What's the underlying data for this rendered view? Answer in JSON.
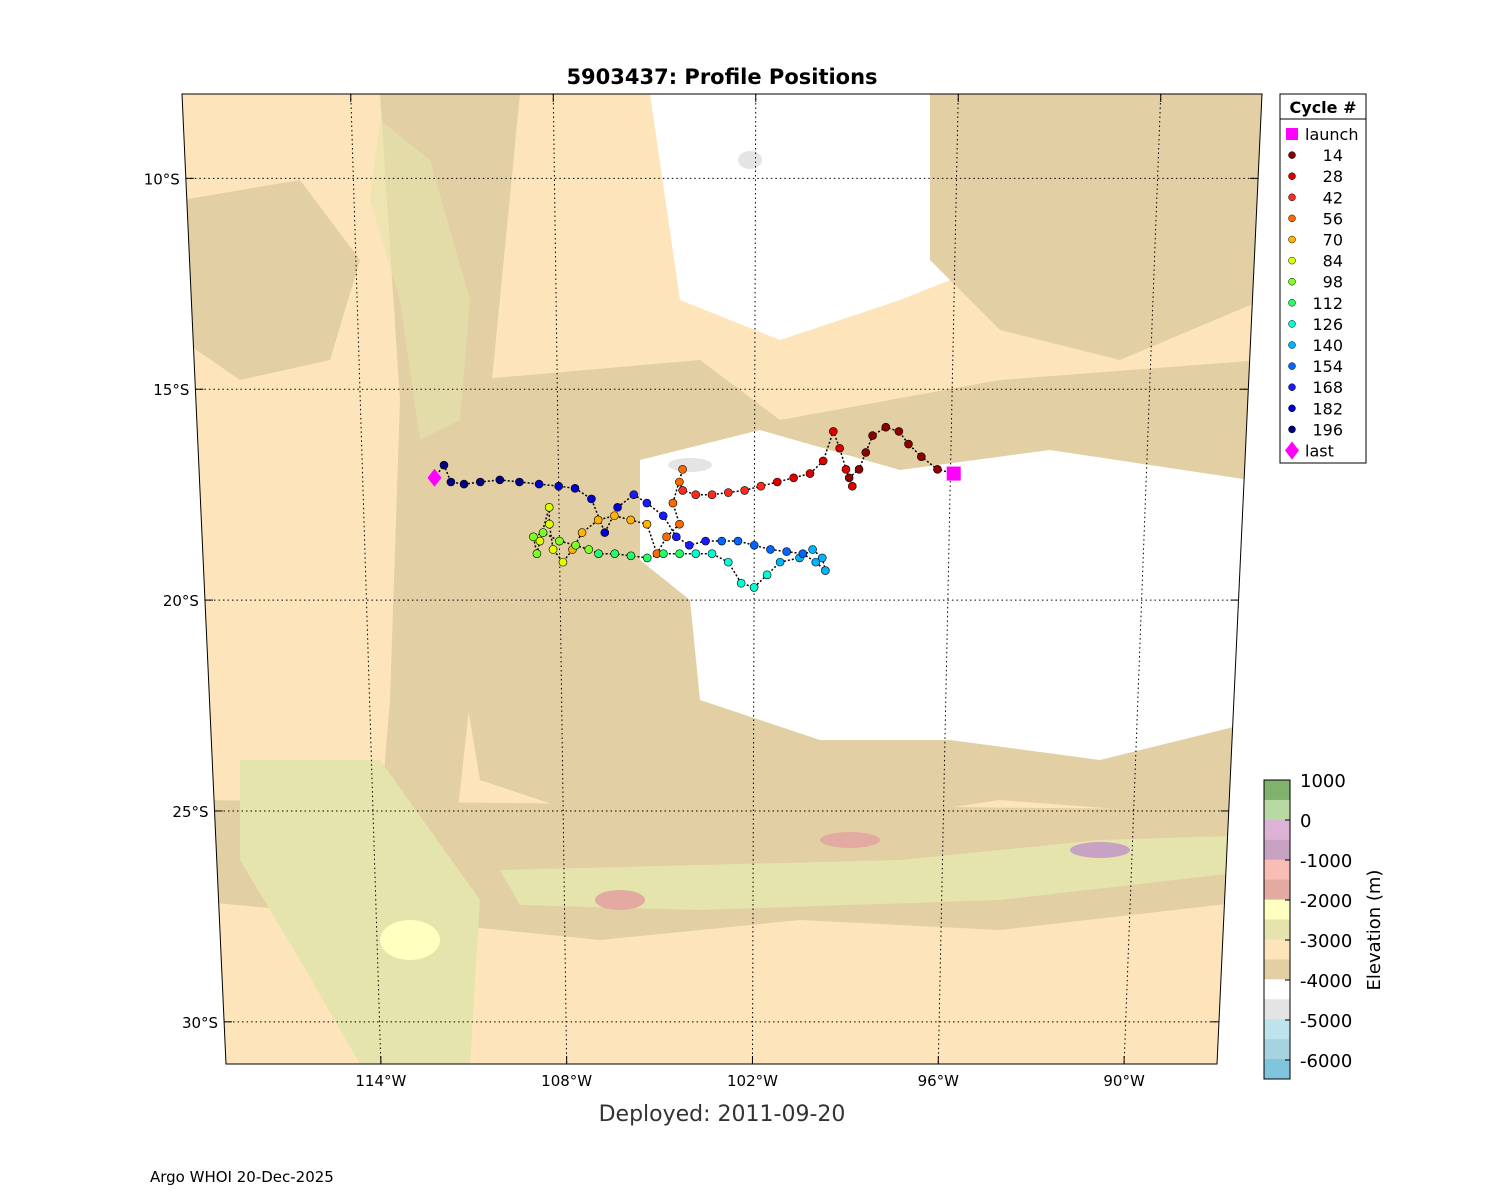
{
  "title": "5903437: Profile Positions",
  "deployed_label": "Deployed: 2011-09-20",
  "footer": "Argo WHOI 20-Dec-2025",
  "lat_ticks": [
    {
      "lat": -10,
      "label": "10°S"
    },
    {
      "lat": -15,
      "label": "15°S"
    },
    {
      "lat": -20,
      "label": "20°S"
    },
    {
      "lat": -25,
      "label": "25°S"
    },
    {
      "lat": -30,
      "label": "30°S"
    }
  ],
  "lon_ticks": [
    {
      "lon": -114,
      "label": "114°W"
    },
    {
      "lon": -108,
      "label": "108°W"
    },
    {
      "lon": -102,
      "label": "102°W"
    },
    {
      "lon": -96,
      "label": "96°W"
    },
    {
      "lon": -90,
      "label": "90°W"
    }
  ],
  "legend": {
    "title": "Cycle #",
    "entries": [
      {
        "label": "launch",
        "color": "#ff00ff",
        "marker": "square"
      },
      {
        "label": "14",
        "color": "#8b0000",
        "marker": "dot"
      },
      {
        "label": "28",
        "color": "#dd0000",
        "marker": "dot"
      },
      {
        "label": "42",
        "color": "#ff2a1a",
        "marker": "dot"
      },
      {
        "label": "56",
        "color": "#ff6a00",
        "marker": "dot"
      },
      {
        "label": "70",
        "color": "#ffb300",
        "marker": "dot"
      },
      {
        "label": "84",
        "color": "#ddff00",
        "marker": "dot"
      },
      {
        "label": "98",
        "color": "#7dff22",
        "marker": "dot"
      },
      {
        "label": "112",
        "color": "#22ff66",
        "marker": "dot"
      },
      {
        "label": "126",
        "color": "#00ffd5",
        "marker": "dot"
      },
      {
        "label": "140",
        "color": "#00b3ff",
        "marker": "dot"
      },
      {
        "label": "154",
        "color": "#0066ff",
        "marker": "dot"
      },
      {
        "label": "168",
        "color": "#1a1aff",
        "marker": "dot"
      },
      {
        "label": "182",
        "color": "#0000cc",
        "marker": "dot"
      },
      {
        "label": "196",
        "color": "#000080",
        "marker": "dot"
      },
      {
        "label": "last",
        "color": "#ff00ff",
        "marker": "diamond"
      }
    ]
  },
  "colorbar": {
    "label": "Elevation (m)",
    "ticks": [
      "1000",
      "0",
      "-1000",
      "-2000",
      "-3000",
      "-4000",
      "-5000",
      "-6000"
    ],
    "colors": [
      "#7fb26d",
      "#b8d9a4",
      "#dcb3d7",
      "#c8a2c2",
      "#f8bdb5",
      "#e2aaa1",
      "#ffffc0",
      "#e4e4ac",
      "#fde4ba",
      "#e3cfa4",
      "#ffffff",
      "#e4e4e4",
      "#bde3ed",
      "#a6d3e0",
      "#7fc5db"
    ]
  },
  "chart_data": {
    "type": "scatter",
    "title": "5903437: Profile Positions",
    "lon_range": [
      -119,
      -87
    ],
    "lat_range": [
      -31,
      -8
    ],
    "launch": {
      "lon": -95.9,
      "lat": -17.0
    },
    "last": {
      "lon": -111.8,
      "lat": -17.1
    },
    "series": [
      {
        "name": "14",
        "color": "#8b0000",
        "points": [
          [
            -95.9,
            -17.0
          ],
          [
            -96.4,
            -16.9
          ],
          [
            -96.9,
            -16.6
          ],
          [
            -97.3,
            -16.3
          ],
          [
            -97.6,
            -16.0
          ],
          [
            -98.0,
            -15.9
          ],
          [
            -98.4,
            -16.1
          ],
          [
            -98.6,
            -16.5
          ],
          [
            -98.8,
            -16.9
          ],
          [
            -99.1,
            -17.1
          ]
        ]
      },
      {
        "name": "28",
        "color": "#dd0000",
        "points": [
          [
            -99.0,
            -17.3
          ],
          [
            -99.2,
            -16.9
          ],
          [
            -99.4,
            -16.4
          ],
          [
            -99.6,
            -16.0
          ],
          [
            -99.9,
            -16.7
          ],
          [
            -100.3,
            -17.0
          ],
          [
            -100.8,
            -17.1
          ],
          [
            -101.3,
            -17.2
          ]
        ]
      },
      {
        "name": "42",
        "color": "#ff2a1a",
        "points": [
          [
            -101.8,
            -17.3
          ],
          [
            -102.3,
            -17.4
          ],
          [
            -102.8,
            -17.45
          ],
          [
            -103.3,
            -17.5
          ],
          [
            -103.8,
            -17.5
          ],
          [
            -104.2,
            -17.4
          ]
        ]
      },
      {
        "name": "56",
        "color": "#ff6a00",
        "points": [
          [
            -104.3,
            -17.2
          ],
          [
            -104.2,
            -16.9
          ],
          [
            -104.5,
            -17.7
          ],
          [
            -104.3,
            -18.2
          ],
          [
            -104.7,
            -18.5
          ],
          [
            -105.0,
            -18.9
          ]
        ]
      },
      {
        "name": "70",
        "color": "#ffb300",
        "points": [
          [
            -105.3,
            -18.2
          ],
          [
            -105.8,
            -18.1
          ],
          [
            -106.3,
            -18.0
          ],
          [
            -106.8,
            -18.1
          ],
          [
            -107.3,
            -18.4
          ],
          [
            -107.6,
            -18.8
          ]
        ]
      },
      {
        "name": "84",
        "color": "#ddff00",
        "points": [
          [
            -107.9,
            -19.1
          ],
          [
            -108.2,
            -18.8
          ],
          [
            -108.3,
            -18.2
          ],
          [
            -108.3,
            -17.8
          ],
          [
            -108.6,
            -18.6
          ]
        ]
      },
      {
        "name": "98",
        "color": "#7dff22",
        "points": [
          [
            -108.7,
            -18.9
          ],
          [
            -108.8,
            -18.5
          ],
          [
            -108.5,
            -18.4
          ],
          [
            -108.0,
            -18.6
          ],
          [
            -107.5,
            -18.7
          ],
          [
            -107.1,
            -18.8
          ]
        ]
      },
      {
        "name": "112",
        "color": "#22ff66",
        "points": [
          [
            -106.8,
            -18.9
          ],
          [
            -106.3,
            -18.9
          ],
          [
            -105.8,
            -18.95
          ],
          [
            -105.3,
            -19.0
          ],
          [
            -104.8,
            -18.9
          ],
          [
            -104.3,
            -18.9
          ]
        ]
      },
      {
        "name": "126",
        "color": "#00ffd5",
        "points": [
          [
            -103.8,
            -18.9
          ],
          [
            -103.3,
            -18.9
          ],
          [
            -102.8,
            -19.1
          ],
          [
            -102.4,
            -19.6
          ],
          [
            -102.0,
            -19.7
          ],
          [
            -101.6,
            -19.4
          ]
        ]
      },
      {
        "name": "140",
        "color": "#00b3ff",
        "points": [
          [
            -101.2,
            -19.1
          ],
          [
            -100.6,
            -19.0
          ],
          [
            -100.2,
            -18.8
          ],
          [
            -99.9,
            -19.0
          ],
          [
            -99.8,
            -19.3
          ],
          [
            -100.1,
            -19.1
          ]
        ]
      },
      {
        "name": "154",
        "color": "#0066ff",
        "points": [
          [
            -100.5,
            -18.9
          ],
          [
            -101.0,
            -18.85
          ],
          [
            -101.5,
            -18.8
          ],
          [
            -102.0,
            -18.7
          ],
          [
            -102.5,
            -18.6
          ],
          [
            -103.0,
            -18.6
          ]
        ]
      },
      {
        "name": "168",
        "color": "#1a1aff",
        "points": [
          [
            -103.5,
            -18.6
          ],
          [
            -104.0,
            -18.7
          ],
          [
            -104.4,
            -18.5
          ],
          [
            -104.8,
            -18.0
          ],
          [
            -105.3,
            -17.7
          ],
          [
            -105.7,
            -17.5
          ]
        ]
      },
      {
        "name": "182",
        "color": "#0000cc",
        "points": [
          [
            -106.2,
            -17.8
          ],
          [
            -106.6,
            -18.4
          ],
          [
            -107.0,
            -17.6
          ],
          [
            -107.5,
            -17.35
          ],
          [
            -108.0,
            -17.3
          ],
          [
            -108.6,
            -17.25
          ]
        ]
      },
      {
        "name": "196",
        "color": "#000080",
        "points": [
          [
            -109.2,
            -17.2
          ],
          [
            -109.8,
            -17.15
          ],
          [
            -110.4,
            -17.2
          ],
          [
            -110.9,
            -17.25
          ],
          [
            -111.3,
            -17.2
          ],
          [
            -111.5,
            -16.8
          ],
          [
            -111.8,
            -17.1
          ]
        ]
      }
    ]
  }
}
